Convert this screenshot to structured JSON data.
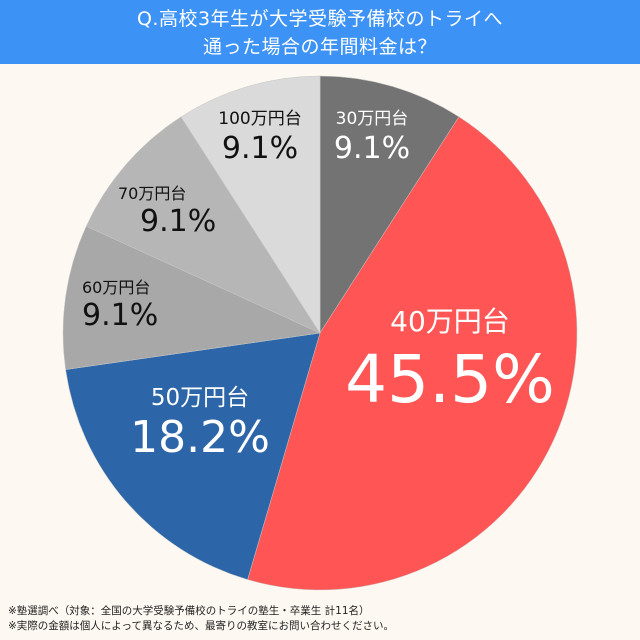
{
  "header": {
    "line1": "Q.高校3年生が大学受験予備校のトライへ",
    "line2": "通った場合の年間料金は？"
  },
  "footnotes": [
    "※塾選調べ（対象：全国の大学受験予備校のトライの塾生・卒業生 計11名）",
    "※実際の金額は個人によって異なるため、最寄りの教室にお問い合わせください。"
  ],
  "chart_data": {
    "type": "pie",
    "title": "Q.高校3年生が大学受験予備校のトライへ通った場合の年間料金は？",
    "categories": [
      "30万円台",
      "40万円台",
      "50万円台",
      "60万円台",
      "70万円台",
      "100万円台"
    ],
    "values": [
      9.1,
      45.5,
      18.2,
      9.1,
      9.1,
      9.1
    ],
    "labels": [
      "9.1%",
      "45.5%",
      "18.2%",
      "9.1%",
      "9.1%",
      "9.1%"
    ],
    "colors": [
      "#737373",
      "#ff5555",
      "#2d66a8",
      "#a8a8a8",
      "#b6b6b6",
      "#dadada"
    ],
    "start_angle": "12 o'clock, clockwise",
    "n": 11
  }
}
